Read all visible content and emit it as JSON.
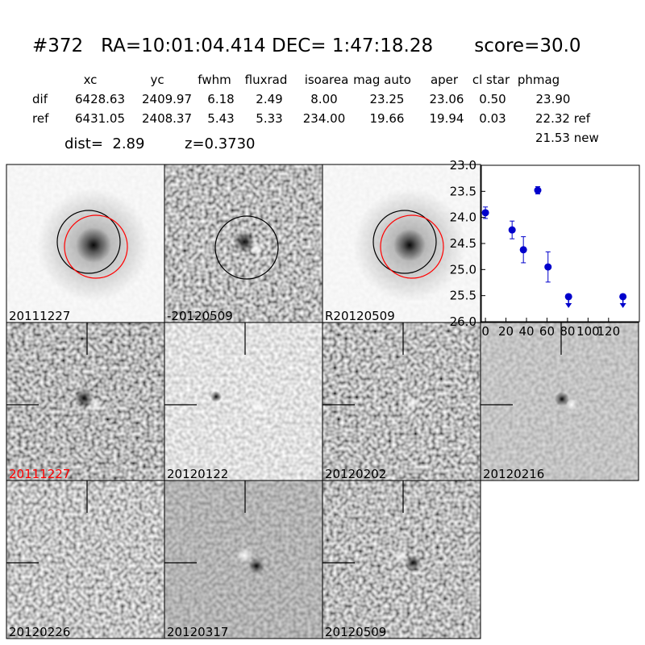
{
  "header": {
    "title": "#372   RA=10:01:04.414 DEC= 1:47:18.28       score=30.0"
  },
  "table": {
    "columns": [
      "xc",
      "yc",
      "fwhm",
      "fluxrad",
      "isoarea",
      "mag auto",
      "aper",
      "cl star",
      "phmag"
    ],
    "rows": [
      {
        "label": "dif",
        "values": [
          "6428.63",
          "2409.97",
          "6.18",
          "2.49",
          "8.00",
          "23.25",
          "23.06",
          "0.50",
          "23.90"
        ]
      },
      {
        "label": "ref",
        "values": [
          "6431.05",
          "2408.37",
          "5.43",
          "5.33",
          "234.00",
          "19.66",
          "19.94",
          "0.03",
          "22.32 ref"
        ]
      }
    ]
  },
  "note": "21.53 new",
  "dist": "dist=  2.89",
  "z": "z=0.3730",
  "panels": [
    {
      "label": "20111227"
    },
    {
      "label": "-20120509"
    },
    {
      "label": "R20120509"
    },
    {
      "label": "20111227",
      "color": "#ff0000"
    },
    {
      "label": "20120122"
    },
    {
      "label": "20120202"
    },
    {
      "label": "20120216"
    },
    {
      "label": "20120226"
    },
    {
      "label": "20120317"
    },
    {
      "label": "20120509"
    }
  ],
  "chart_data": {
    "type": "scatter",
    "color": "#0000cc",
    "x": [
      0,
      26,
      37,
      51,
      61,
      81,
      134
    ],
    "values": [
      23.91,
      24.24,
      24.62,
      23.48,
      24.95,
      25.52,
      25.52
    ],
    "errors": [
      0.11,
      0.17,
      0.25,
      0.07,
      0.29,
      null,
      null
    ],
    "upper_limits": [
      false,
      false,
      false,
      false,
      false,
      true,
      true
    ],
    "xlim": [
      -4,
      150
    ],
    "xticks": [
      0,
      20,
      40,
      60,
      80,
      100,
      120
    ],
    "ylim": [
      26,
      23
    ],
    "yticks": [
      {
        "value": 23,
        "label": "23.0"
      },
      {
        "value": 23.5,
        "label": "23.5"
      },
      {
        "value": 24,
        "label": "24.0"
      },
      {
        "value": 24.5,
        "label": "24.5"
      },
      {
        "value": 25,
        "label": "25.0"
      },
      {
        "value": 25.5,
        "label": "25.5"
      },
      {
        "value": 26,
        "label": "26.0"
      }
    ]
  }
}
